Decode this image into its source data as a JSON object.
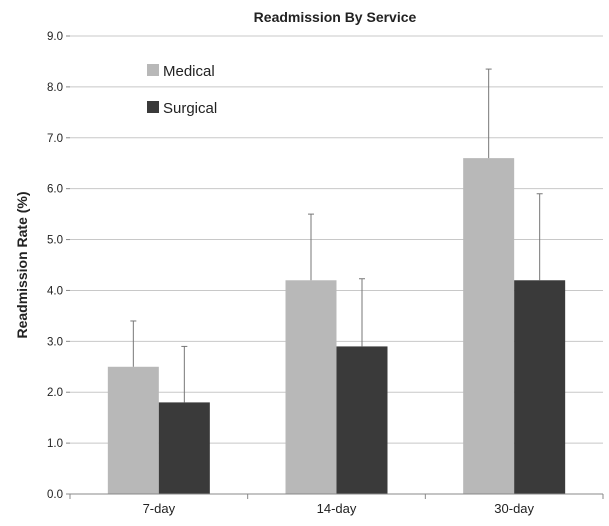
{
  "chart_data": {
    "type": "bar",
    "title": "Readmission By Service",
    "xlabel": "",
    "ylabel": "Readmission Rate (%)",
    "categories": [
      "7-day",
      "14-day",
      "30-day"
    ],
    "series": [
      {
        "name": "Medical",
        "color": "#b8b8b8",
        "values": [
          2.5,
          4.2,
          6.6
        ],
        "error_upper": [
          0.9,
          1.3,
          1.75
        ]
      },
      {
        "name": "Surgical",
        "color": "#3a3a3a",
        "values": [
          1.8,
          2.9,
          4.2
        ],
        "error_upper": [
          1.1,
          1.33,
          1.7
        ]
      }
    ],
    "ylim": [
      0,
      9
    ],
    "y_ticks": [
      "0.0",
      "1.0",
      "2.0",
      "3.0",
      "4.0",
      "5.0",
      "6.0",
      "7.0",
      "8.0",
      "9.0"
    ],
    "grid": true,
    "legend_position": "top-left"
  }
}
